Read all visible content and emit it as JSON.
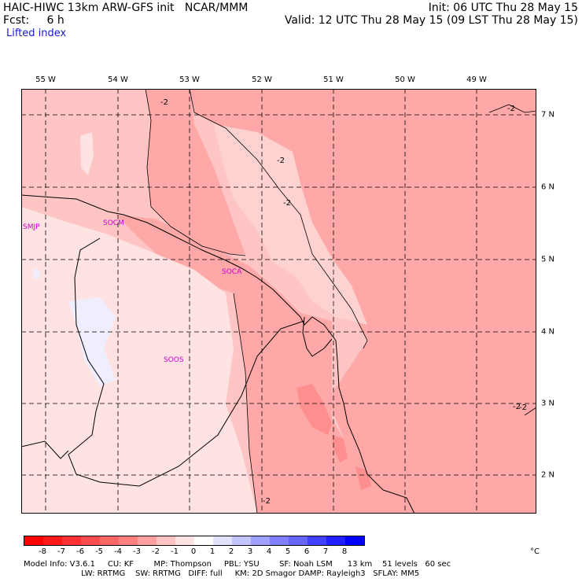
{
  "header": {
    "line1_left": "HAIC-HIWC 13km ARW-GFS init   NCAR/MMM",
    "line1_right": "Init: 06 UTC Thu 28 May 15",
    "line2_left": "Fcst:     6 h",
    "line2_right": "Valid: 12 UTC Thu 28 May 15 (09 LST Thu 28 May 15)",
    "field_name": "Lifted index"
  },
  "map": {
    "longitude_labels": [
      "55 W",
      "54 W",
      "53 W",
      "52 W",
      "51 W",
      "50 W",
      "49 W"
    ],
    "latitude_labels": [
      "7 N",
      "6 N",
      "5 N",
      "4 N",
      "3 N",
      "2 N"
    ],
    "station_labels": [
      "SMJP",
      "SOCM",
      "SOCA",
      "SOOS"
    ],
    "contour_labels": [
      "-2",
      "-2",
      "-2",
      "-2",
      "-2",
      "-2",
      "-2"
    ]
  },
  "color_scale": {
    "labels": [
      "-8",
      "-7",
      "-6",
      "-5",
      "-4",
      "-3",
      "-2",
      "-1",
      "0",
      "1",
      "2",
      "3",
      "4",
      "5",
      "6",
      "7",
      "8"
    ],
    "unit": "°C",
    "colors": [
      "#ff0000",
      "#ff1a1a",
      "#ff3333",
      "#ff4d4d",
      "#ff6666",
      "#ff8080",
      "#ffa0a0",
      "#ffc4c4",
      "#ffe2e2",
      "#ffffff",
      "#e2e2ff",
      "#c4c4ff",
      "#a0a0ff",
      "#8080ff",
      "#6666ff",
      "#4040ff",
      "#2020ff",
      "#0000ff"
    ]
  },
  "footer": {
    "line1": "Model Info: V3.6.1     CU: KF        MP: Thompson     PBL: YSU        SF: Noah LSM      13 km    51 levels   60 sec",
    "line2": "                       LW: RRTMG    SW: RRTMG   DIFF: full     KM: 2D Smagor DAMP: Rayleigh3   SFLAY: MM5"
  }
}
